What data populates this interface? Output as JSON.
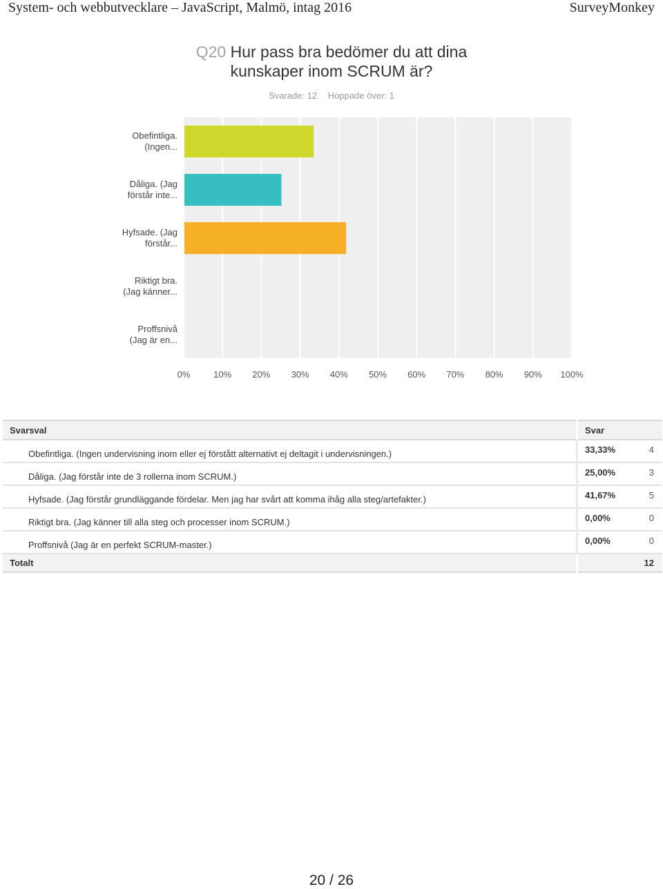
{
  "header": {
    "left": "System- och webbutvecklare – JavaScript, Malmö, intag 2016",
    "right": "SurveyMonkey"
  },
  "question": {
    "number": "Q20",
    "title_line1": "Hur pass bra bedömer du att dina",
    "title_line2": "kunskaper inom SCRUM är?",
    "answered": "Svarade: 12",
    "skipped": "Hoppade över: 1"
  },
  "chart_data": {
    "type": "bar",
    "orientation": "horizontal",
    "categories": [
      [
        "Obefintliga.",
        "(Ingen..."
      ],
      [
        "Dåliga. (Jag",
        "förstår inte..."
      ],
      [
        "Hyfsade. (Jag",
        "förstår..."
      ],
      [
        "Riktigt bra.",
        "(Jag känner..."
      ],
      [
        "Proffsnivå",
        "(Jag är en..."
      ]
    ],
    "values": [
      33.33,
      25.0,
      41.67,
      0,
      0
    ],
    "colors": [
      "#cdd72c",
      "#36bec0",
      "#f5b027",
      "#f5b027",
      "#f5b027"
    ],
    "xlim": [
      0,
      100
    ],
    "xticks": [
      "0%",
      "10%",
      "20%",
      "30%",
      "40%",
      "50%",
      "60%",
      "70%",
      "80%",
      "90%",
      "100%"
    ],
    "grid": true
  },
  "table": {
    "col_choice": "Svarsval",
    "col_answer": "Svar",
    "rows": [
      {
        "label": "Obefintliga. (Ingen undervisning inom eller ej förstått alternativt ej deltagit i undervisningen.)",
        "percent": "33,33%",
        "count": "4"
      },
      {
        "label": "Dåliga. (Jag förstår inte de 3 rollerna inom SCRUM.)",
        "percent": "25,00%",
        "count": "3"
      },
      {
        "label": "Hyfsade. (Jag förstår grundläggande fördelar. Men jag har svårt att komma ihåg alla steg/artefakter.)",
        "percent": "41,67%",
        "count": "5"
      },
      {
        "label": "Riktigt bra. (Jag känner till alla steg och processer inom SCRUM.)",
        "percent": "0,00%",
        "count": "0"
      },
      {
        "label": "Proffsnivå (Jag är en perfekt SCRUM-master.)",
        "percent": "0,00%",
        "count": "0"
      }
    ],
    "total_label": "Totalt",
    "total_count": "12"
  },
  "footer": {
    "page": "20 / 26"
  }
}
